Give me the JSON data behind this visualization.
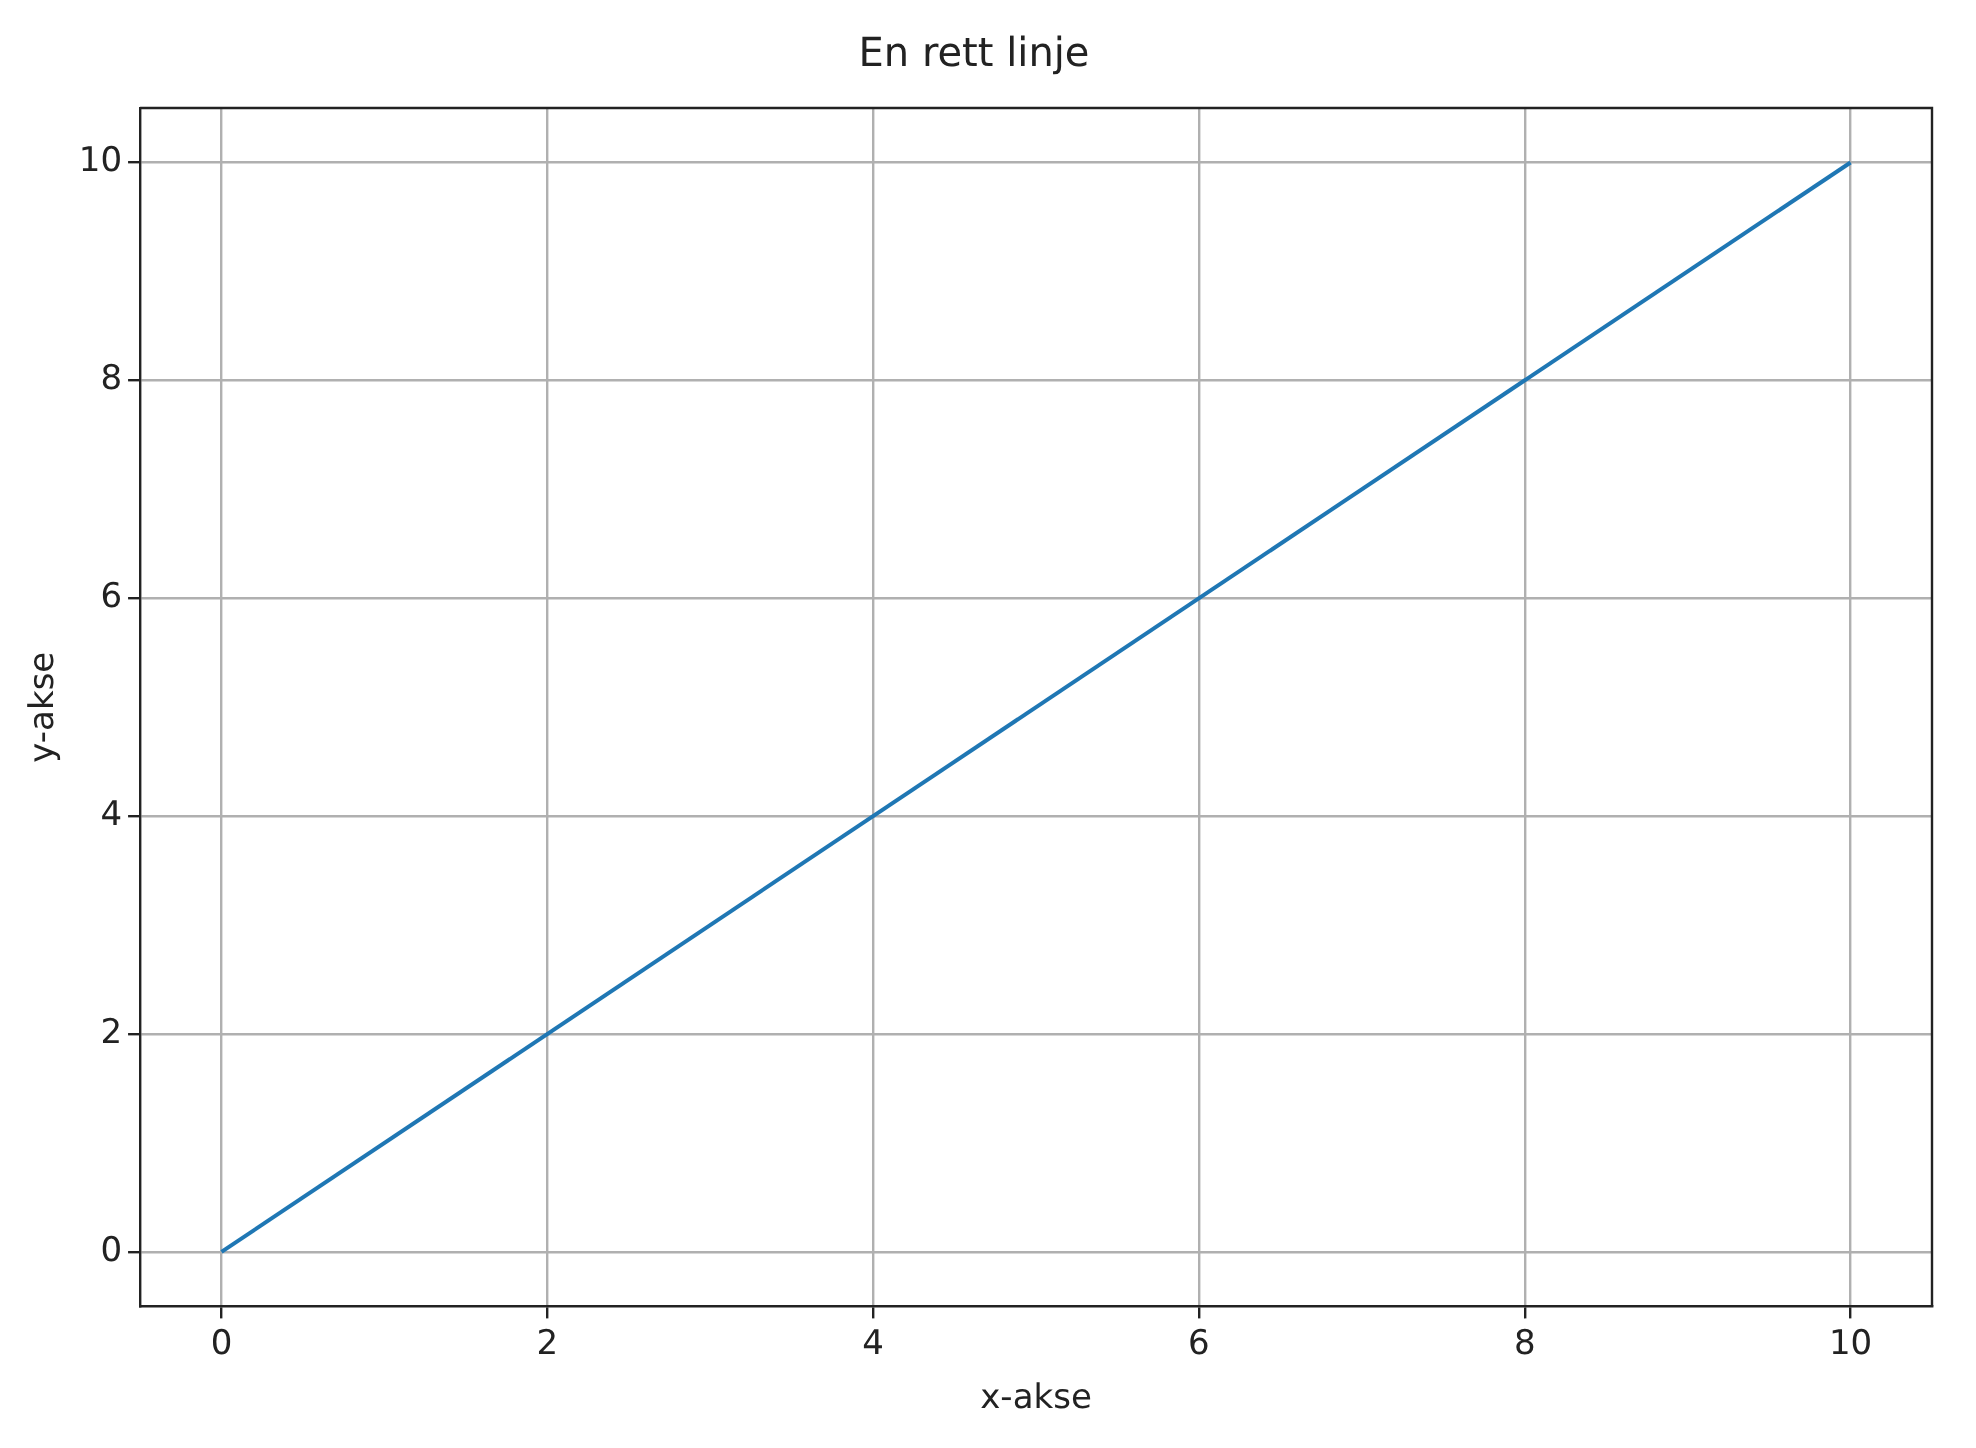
{
  "chart_data": {
    "type": "line",
    "title": "En rett linje",
    "xlabel": "x-akse",
    "ylabel": "y-akse",
    "x": [
      0,
      10
    ],
    "series": [
      {
        "color": "#1f77b4",
        "values": [
          0,
          10
        ]
      }
    ],
    "xlim": [
      -0.5,
      10.5
    ],
    "ylim": [
      -0.5,
      10.5
    ],
    "xticks": [
      0,
      2,
      4,
      6,
      8,
      10
    ],
    "yticks": [
      0,
      2,
      4,
      6,
      8,
      10
    ],
    "grid": true,
    "legend": false,
    "marker": "none",
    "line_style": "solid"
  }
}
